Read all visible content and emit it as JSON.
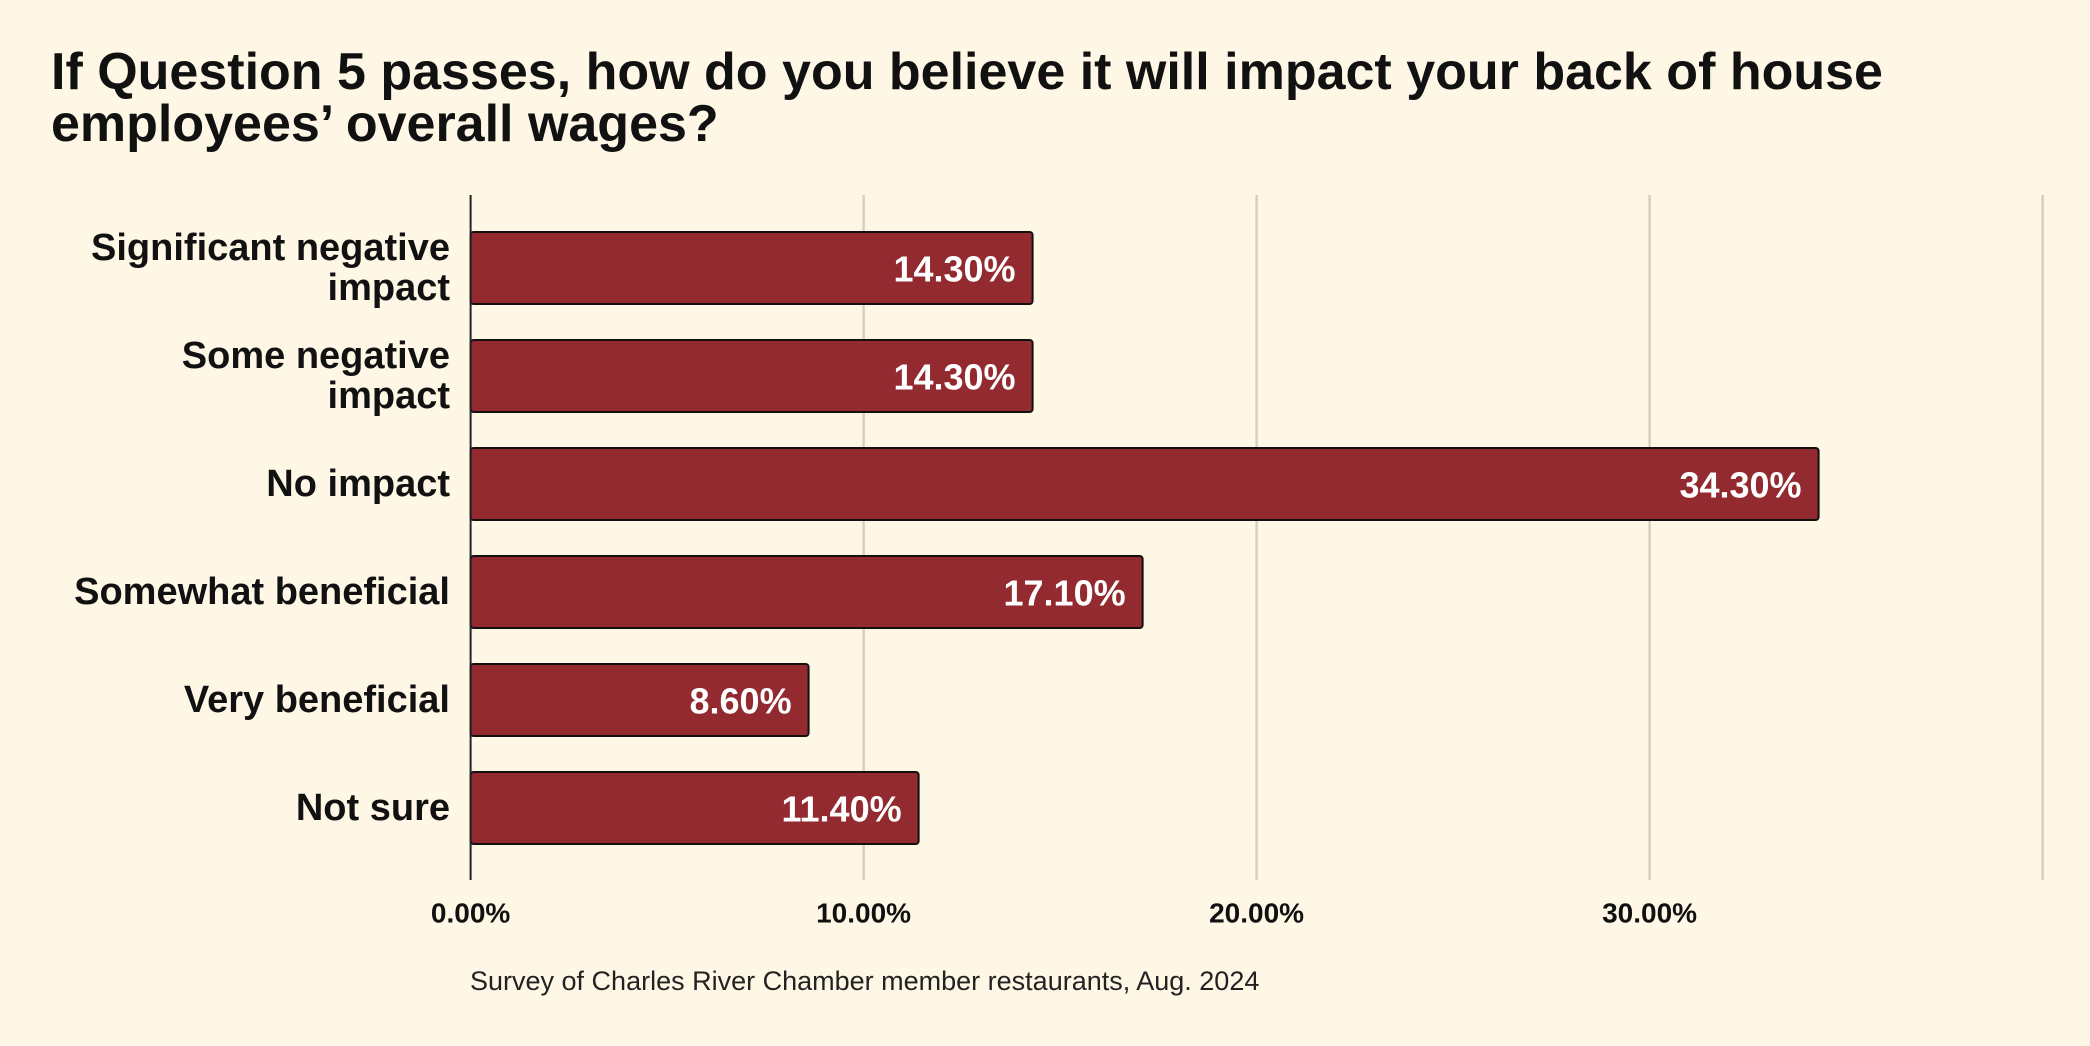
{
  "chart_data": {
    "type": "bar",
    "orientation": "horizontal",
    "title": "If Question 5 passes, how do you believe it will impact your back of house employees’ overall wages?",
    "categories": [
      "Significant negative impact",
      "Some negative impact",
      "No impact",
      "Somewhat beneficial",
      "Very beneficial",
      "Not sure"
    ],
    "values": [
      14.3,
      14.3,
      34.3,
      17.1,
      8.6,
      11.4
    ],
    "value_labels": [
      "14.30%",
      "14.30%",
      "34.30%",
      "17.10%",
      "8.60%",
      "11.40%"
    ],
    "color": "#922a2f",
    "xlim": [
      0,
      40
    ],
    "xticks": [
      {
        "value": 0,
        "label": "0.00%"
      },
      {
        "value": 10,
        "label": "10.00%"
      },
      {
        "value": 20,
        "label": "20.00%"
      },
      {
        "value": 30,
        "label": "30.00%"
      },
      40
    ],
    "grid": true,
    "note": "Survey of Charles River Chamber member restaurants, Aug. 2024"
  }
}
